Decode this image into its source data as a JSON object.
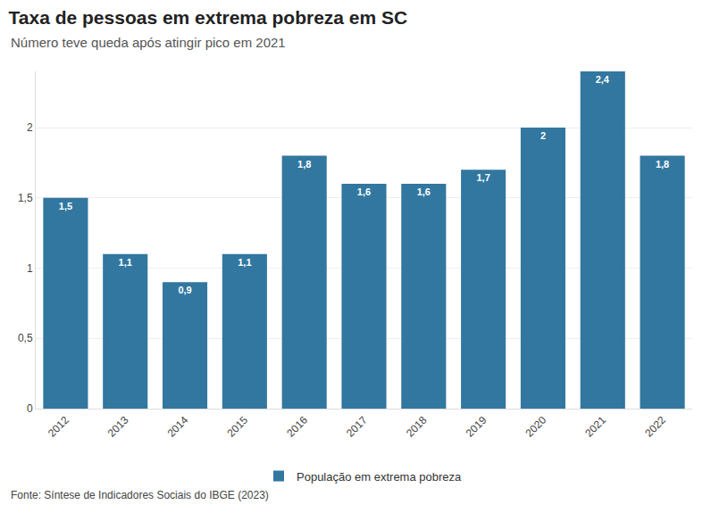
{
  "chart_data": {
    "type": "bar",
    "title": "Taxa de pessoas em extrema pobreza em SC",
    "subtitle": "Número teve queda após atingir pico em 2021",
    "source": "Fonte: Síntese de Indicadores Sociais do IBGE (2023)",
    "categories": [
      "2012",
      "2013",
      "2014",
      "2015",
      "2016",
      "2017",
      "2018",
      "2019",
      "2020",
      "2021",
      "2022"
    ],
    "series": [
      {
        "name": "População em extrema pobreza",
        "color": "#32779f",
        "values": [
          1.5,
          1.1,
          0.9,
          1.1,
          1.8,
          1.6,
          1.6,
          1.7,
          2,
          2.4,
          1.8
        ],
        "value_labels": [
          "1,5",
          "1,1",
          "0,9",
          "1,1",
          "1,8",
          "1,6",
          "1,6",
          "1,7",
          "2",
          "2,4",
          "1,8"
        ]
      }
    ],
    "ylim": [
      0,
      2.4
    ],
    "yticks": [
      0,
      {
        "value": 0.5,
        "label": "0,5"
      },
      1,
      {
        "value": 1.5,
        "label": "1,5"
      },
      2
    ],
    "grid": true,
    "data_labels": true,
    "legend": "bottom"
  }
}
